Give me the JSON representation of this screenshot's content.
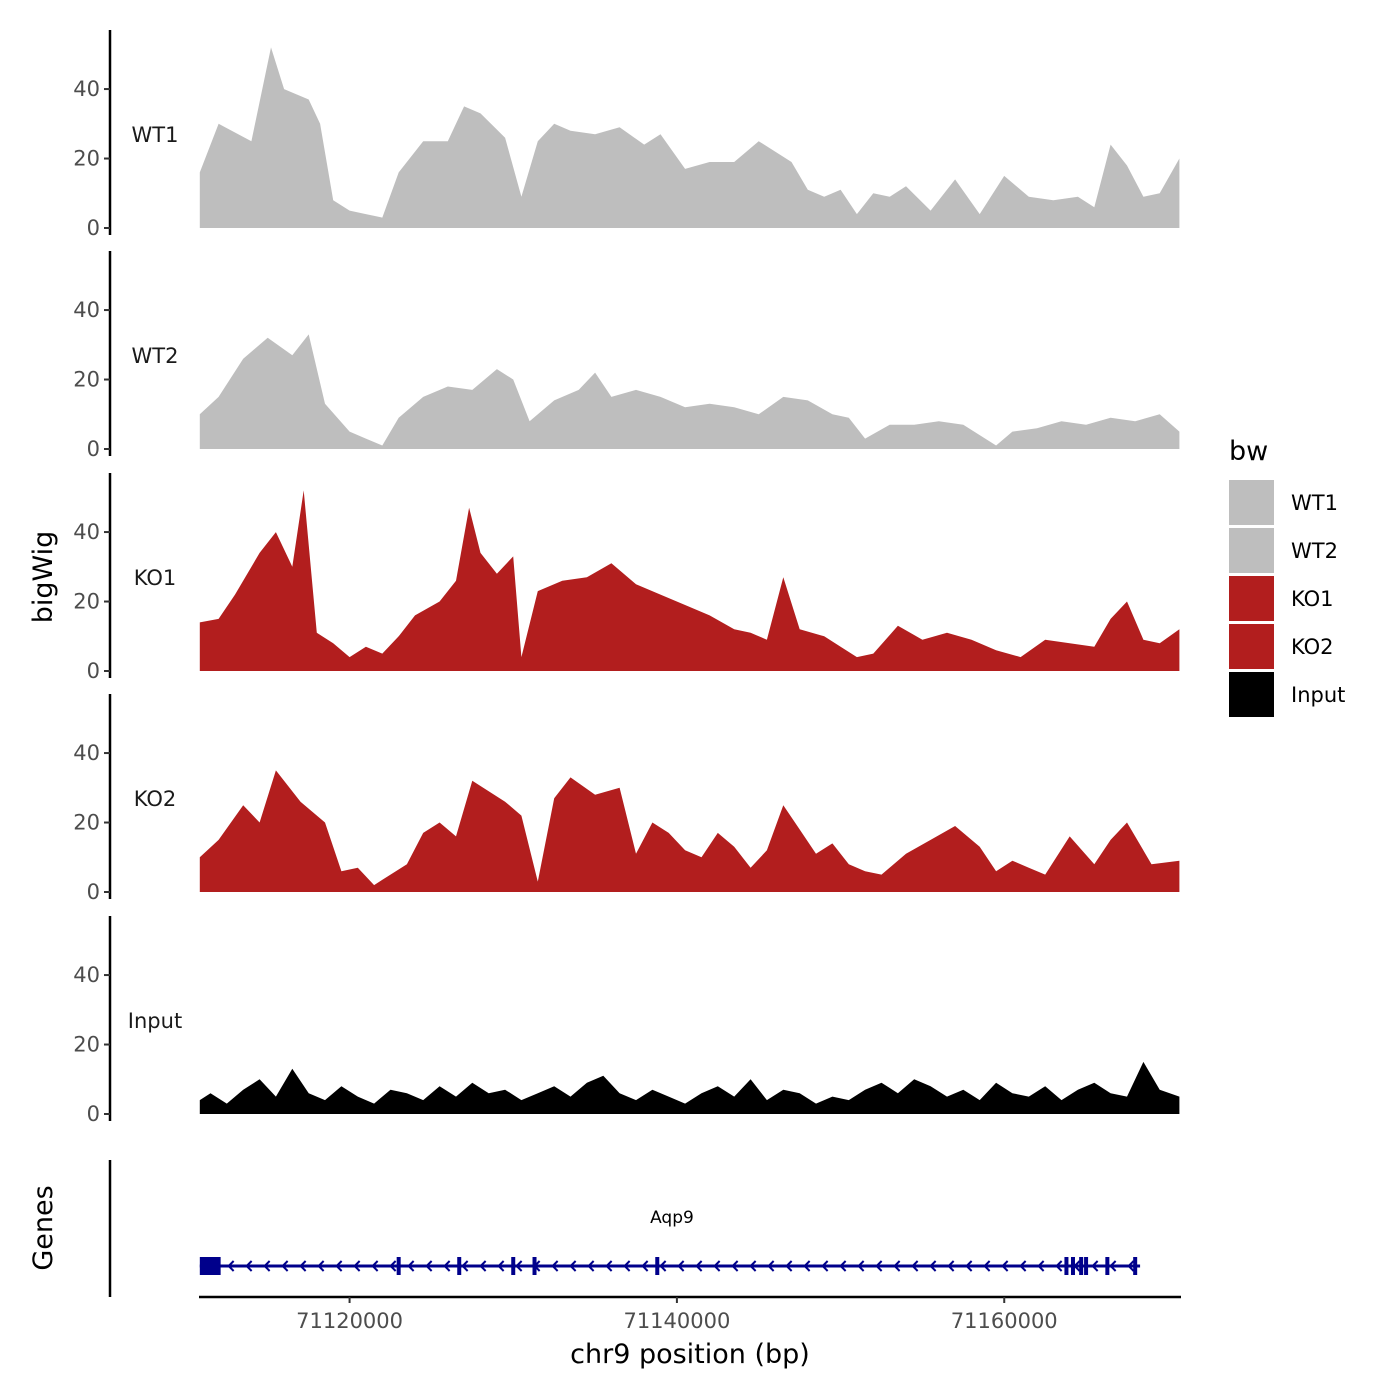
{
  "chart_data": {
    "type": "area",
    "ylabel": "bigWig",
    "xlabel": "chr9 position (bp)",
    "genes_label": "Genes",
    "xlim": [
      71110800,
      71170800
    ],
    "ylim": [
      0,
      57
    ],
    "yticks": [
      0,
      20,
      40
    ],
    "xticks": [
      71120000,
      71140000,
      71160000
    ],
    "legend": {
      "title": "bw",
      "position": "right",
      "entries": [
        {
          "name": "WT1",
          "color": "#bebebe"
        },
        {
          "name": "WT2",
          "color": "#bebebe"
        },
        {
          "name": "KO1",
          "color": "#b21e1e"
        },
        {
          "name": "KO2",
          "color": "#b21e1e"
        },
        {
          "name": "Input",
          "color": "#000000"
        }
      ]
    },
    "series": [
      {
        "name": "WT1",
        "color": "#bebebe",
        "x": [
          71110850,
          71112000,
          71114000,
          71115200,
          71116000,
          71117500,
          71118200,
          71119000,
          71120000,
          71121000,
          71122000,
          71123000,
          71124500,
          71126000,
          71127000,
          71128000,
          71129500,
          71130500,
          71131500,
          71132500,
          71133500,
          71135000,
          71136500,
          71138000,
          71139000,
          71140500,
          71142000,
          71143500,
          71145000,
          71147000,
          71148000,
          71149000,
          71150000,
          71151000,
          71152000,
          71153000,
          71154000,
          71155500,
          71157000,
          71158500,
          71160000,
          71161500,
          71163000,
          71164500,
          71165500,
          71166500,
          71167500,
          71168500,
          71169500,
          71170700
        ],
        "values": [
          16,
          30,
          25,
          52,
          40,
          37,
          30,
          8,
          5,
          4,
          3,
          16,
          25,
          25,
          35,
          33,
          26,
          9,
          25,
          30,
          28,
          27,
          29,
          24,
          27,
          17,
          19,
          19,
          25,
          19,
          11,
          9,
          11,
          4,
          10,
          9,
          12,
          5,
          14,
          4,
          15,
          9,
          8,
          9,
          6,
          24,
          18,
          9,
          10,
          20
        ]
      },
      {
        "name": "WT2",
        "color": "#bebebe",
        "x": [
          71110850,
          71112000,
          71113500,
          71115000,
          71116500,
          71117500,
          71118500,
          71120000,
          71121000,
          71122000,
          71123000,
          71124500,
          71126000,
          71127500,
          71129000,
          71130000,
          71131000,
          71132500,
          71134000,
          71135000,
          71136000,
          71137500,
          71139000,
          71140500,
          71142000,
          71143500,
          71145000,
          71146500,
          71148000,
          71149500,
          71150500,
          71151500,
          71153000,
          71154500,
          71156000,
          71157500,
          71158500,
          71159500,
          71160500,
          71162000,
          71163500,
          71165000,
          71166500,
          71168000,
          71169500,
          71170700
        ],
        "values": [
          10,
          15,
          26,
          32,
          27,
          33,
          13,
          5,
          3,
          1,
          9,
          15,
          18,
          17,
          23,
          20,
          8,
          14,
          17,
          22,
          15,
          17,
          15,
          12,
          13,
          12,
          10,
          15,
          14,
          10,
          9,
          3,
          7,
          7,
          8,
          7,
          4,
          1,
          5,
          6,
          8,
          7,
          9,
          8,
          10,
          5
        ]
      },
      {
        "name": "KO1",
        "color": "#b21e1e",
        "x": [
          71110850,
          71112000,
          71113000,
          71114500,
          71115500,
          71116500,
          71117200,
          71118000,
          71119000,
          71120000,
          71121000,
          71122000,
          71123000,
          71124000,
          71125500,
          71126500,
          71127300,
          71128000,
          71129000,
          71130000,
          71130500,
          71131500,
          71133000,
          71134500,
          71136000,
          71137500,
          71139000,
          71140500,
          71142000,
          71143500,
          71144500,
          71145500,
          71146500,
          71147500,
          71149000,
          71150000,
          71151000,
          71152000,
          71153500,
          71155000,
          71156500,
          71158000,
          71159500,
          71161000,
          71162500,
          71164000,
          71165500,
          71166500,
          71167500,
          71168500,
          71169500,
          71170700
        ],
        "values": [
          14,
          15,
          22,
          34,
          40,
          30,
          52,
          11,
          8,
          4,
          7,
          5,
          10,
          16,
          20,
          26,
          47,
          34,
          28,
          33,
          4,
          23,
          26,
          27,
          31,
          25,
          22,
          19,
          16,
          12,
          11,
          9,
          27,
          12,
          10,
          7,
          4,
          5,
          13,
          9,
          11,
          9,
          6,
          4,
          9,
          8,
          7,
          15,
          20,
          9,
          8,
          12
        ]
      },
      {
        "name": "KO2",
        "color": "#b21e1e",
        "x": [
          71110850,
          71112000,
          71113500,
          71114500,
          71115500,
          71117000,
          71118500,
          71119500,
          71120500,
          71121500,
          71122500,
          71123500,
          71124500,
          71125500,
          71126500,
          71127500,
          71128500,
          71129500,
          71130500,
          71131500,
          71132500,
          71133500,
          71135000,
          71136500,
          71137500,
          71138500,
          71139500,
          71140500,
          71141500,
          71142500,
          71143500,
          71144500,
          71145500,
          71146500,
          71147500,
          71148500,
          71149500,
          71150500,
          71151500,
          71152500,
          71154000,
          71155500,
          71157000,
          71158500,
          71159500,
          71160500,
          71161500,
          71162500,
          71164000,
          71165500,
          71166500,
          71167500,
          71169000,
          71170700
        ],
        "values": [
          10,
          15,
          25,
          20,
          35,
          26,
          20,
          6,
          7,
          2,
          5,
          8,
          17,
          20,
          16,
          32,
          29,
          26,
          22,
          3,
          27,
          33,
          28,
          30,
          11,
          20,
          17,
          12,
          10,
          17,
          13,
          7,
          12,
          25,
          18,
          11,
          14,
          8,
          6,
          5,
          11,
          15,
          19,
          13,
          6,
          9,
          7,
          5,
          16,
          8,
          15,
          20,
          8,
          9
        ]
      },
      {
        "name": "Input",
        "color": "#000000",
        "x": [
          71110850,
          71111500,
          71112500,
          71113500,
          71114500,
          71115500,
          71116500,
          71117500,
          71118500,
          71119500,
          71120500,
          71121500,
          71122500,
          71123500,
          71124500,
          71125500,
          71126500,
          71127500,
          71128500,
          71129500,
          71130500,
          71131500,
          71132500,
          71133500,
          71134500,
          71135500,
          71136500,
          71137500,
          71138500,
          71139500,
          71140500,
          71141500,
          71142500,
          71143500,
          71144500,
          71145500,
          71146500,
          71147500,
          71148500,
          71149500,
          71150500,
          71151500,
          71152500,
          71153500,
          71154500,
          71155500,
          71156500,
          71157500,
          71158500,
          71159500,
          71160500,
          71161500,
          71162500,
          71163500,
          71164500,
          71165500,
          71166500,
          71167500,
          71168500,
          71169500,
          71170700
        ],
        "values": [
          4,
          6,
          3,
          7,
          10,
          5,
          13,
          6,
          4,
          8,
          5,
          3,
          7,
          6,
          4,
          8,
          5,
          9,
          6,
          7,
          4,
          6,
          8,
          5,
          9,
          11,
          6,
          4,
          7,
          5,
          3,
          6,
          8,
          5,
          10,
          4,
          7,
          6,
          3,
          5,
          4,
          7,
          9,
          6,
          10,
          8,
          5,
          7,
          4,
          9,
          6,
          5,
          8,
          4,
          7,
          9,
          6,
          5,
          15,
          7,
          5
        ]
      }
    ],
    "gene": {
      "name": "Aqp9",
      "color": "#00008b",
      "start": 71110850,
      "end": 71168300,
      "exon_blocks": [
        [
          71110850,
          71112000
        ]
      ],
      "exon_marks": [
        71112000,
        71123000,
        71126700,
        71130000,
        71131300,
        71138800,
        71163800,
        71164200,
        71164700,
        71165000,
        71166300,
        71168000
      ],
      "strand": "-"
    }
  }
}
